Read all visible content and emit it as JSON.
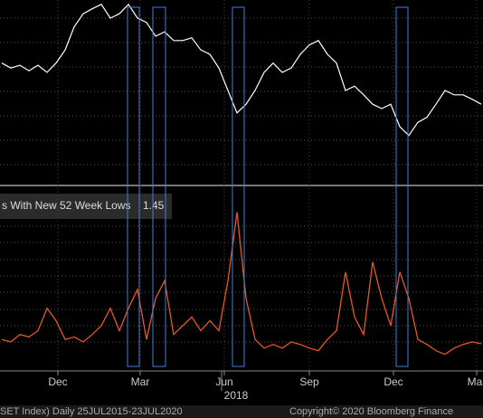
{
  "chart_data": {
    "type": "line",
    "legend_text": "s With New 52 Week Lows",
    "footer_left": "SET Index)  Daily 25JUL2015-23JUL2020",
    "footer_right": "Copyright© 2020 Bloomberg Finance",
    "xlim": [
      -0.2,
      53.2
    ],
    "xticks": [
      {
        "value": 6.2,
        "label": "Dec"
      },
      {
        "value": 15.3,
        "label": "Mar"
      },
      {
        "value": 24.6,
        "label": "Jun"
      },
      {
        "value": 34,
        "label": "Sep"
      },
      {
        "value": 43.3,
        "label": "Dec"
      },
      {
        "value": 52.5,
        "label": "Mar"
      }
    ],
    "year_tick": {
      "value": 25.9,
      "label": "2018"
    },
    "highlights": [
      [
        13.9,
        15.2
      ],
      [
        16.7,
        18.1
      ],
      [
        25.5,
        26.8
      ],
      [
        43.6,
        44.9
      ]
    ],
    "highlight_color": "#3f7fd6",
    "grid": true,
    "series": [
      {
        "color": "#ffffff",
        "ylim": [
          1530,
          1860
        ],
        "values": [
          1745,
          1736,
          1741,
          1731,
          1741,
          1728,
          1745,
          1769,
          1811,
          1835,
          1844,
          1852,
          1827,
          1835,
          1852,
          1827,
          1819,
          1794,
          1802,
          1786,
          1786,
          1791,
          1769,
          1761,
          1736,
          1695,
          1654,
          1670,
          1695,
          1728,
          1745,
          1728,
          1736,
          1761,
          1778,
          1786,
          1761,
          1745,
          1695,
          1703,
          1687,
          1670,
          1662,
          1670,
          1629,
          1613,
          1637,
          1646,
          1670,
          1695,
          1687,
          1687,
          1679,
          1670
        ]
      },
      {
        "color": "#e2582b",
        "ylim": [
          0,
          14
        ],
        "values": [
          1.8,
          1.6,
          2.2,
          2.0,
          2.5,
          4.3,
          3.3,
          1.8,
          2.0,
          1.6,
          2.2,
          2.9,
          4.3,
          2.5,
          4.3,
          5.8,
          1.8,
          5.1,
          6.5,
          2.2,
          2.9,
          3.6,
          2.5,
          3.3,
          2.5,
          6.5,
          12.0,
          5.1,
          1.8,
          1.1,
          1.4,
          1.1,
          1.6,
          1.4,
          1.1,
          0.9,
          1.8,
          2.5,
          7.2,
          3.6,
          2.2,
          8.0,
          5.1,
          2.9,
          7.2,
          5.1,
          1.8,
          1.4,
          0.9,
          0.6,
          1.1,
          1.4,
          1.6,
          1.45
        ]
      }
    ]
  }
}
